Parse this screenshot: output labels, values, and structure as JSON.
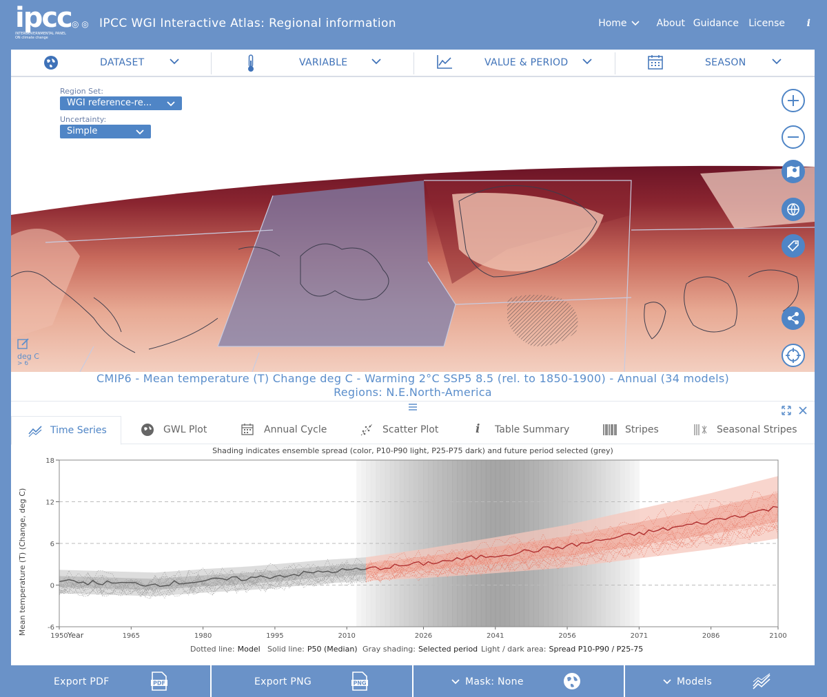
{
  "header": {
    "logo": "ipcc",
    "logo_sub": "INTERGOVERNMENTAL PANEL ON climate change",
    "title": "IPCC WGI Interactive Atlas: Regional information",
    "nav": {
      "home": "Home",
      "about": "About",
      "guidance": "Guidance",
      "license": "License",
      "info": "i"
    }
  },
  "toolbar": {
    "dataset": "DATASET",
    "variable": "VARIABLE",
    "value_period": "VALUE & PERIOD",
    "season": "SEASON"
  },
  "map": {
    "region_set_label": "Region Set:",
    "region_set_value": "WGI reference-re...",
    "uncertainty_label": "Uncertainty:",
    "uncertainty_value": "Simple",
    "legend_unit": "deg C",
    "legend_value": "> 6",
    "caption_line1": "CMIP6 - Mean temperature (T) Change deg C - Warming 2°C SSP5 8.5 (rel. to 1850-1900) - Annual (34 models)",
    "caption_line2": "Regions: N.E.North-America"
  },
  "tabs": [
    {
      "label": "Time Series"
    },
    {
      "label": "GWL Plot"
    },
    {
      "label": "Annual Cycle"
    },
    {
      "label": "Scatter Plot"
    },
    {
      "label": "Table Summary"
    },
    {
      "label": "Stripes"
    },
    {
      "label": "Seasonal Stripes"
    }
  ],
  "chart_data": {
    "type": "line",
    "title": "Shading indicates ensemble spread (color, P10-P90 light, P25-P75 dark) and future period selected (grey)",
    "xlabel": "Year",
    "ylabel": "Mean temperature (T) (Change, deg C)",
    "xlim": [
      1950,
      2100
    ],
    "ylim": [
      -6,
      18
    ],
    "x_ticks": [
      "1950",
      "1965",
      "1980",
      "1995",
      "2010",
      "2026",
      "2041",
      "2056",
      "2071",
      "2086",
      "2100"
    ],
    "y_ticks": [
      "-6",
      "0",
      "6",
      "12",
      "18"
    ],
    "selected_period": [
      2012,
      2071
    ],
    "series": [
      {
        "name": "Historical P50 (Median)",
        "color": "#555555",
        "x": [
          1950,
          1960,
          1970,
          1980,
          1990,
          2000,
          2005,
          2014
        ],
        "y": [
          0.5,
          0.3,
          0.1,
          0.6,
          1.0,
          1.6,
          1.9,
          2.3
        ]
      },
      {
        "name": "SSP5 8.5 P50 (Median)",
        "color": "#b03030",
        "x": [
          2014,
          2026,
          2041,
          2056,
          2071,
          2086,
          2100
        ],
        "y": [
          2.3,
          3.1,
          4.3,
          5.6,
          7.4,
          9.2,
          11.2
        ]
      }
    ],
    "legend_items": [
      {
        "key": "Dotted line:",
        "value": "Model"
      },
      {
        "key": "Solid line:",
        "value": "P50 (Median)"
      },
      {
        "key": "Gray shading:",
        "value": "Selected period"
      },
      {
        "key": "Light / dark area:",
        "value": "Spread P10-P90 / P25-75"
      }
    ]
  },
  "bottom": {
    "export_pdf": "Export PDF",
    "export_png": "Export PNG",
    "mask": "Mask: None",
    "models": "Models",
    "pdf_badge": "PDF",
    "png_badge": "PNG"
  }
}
